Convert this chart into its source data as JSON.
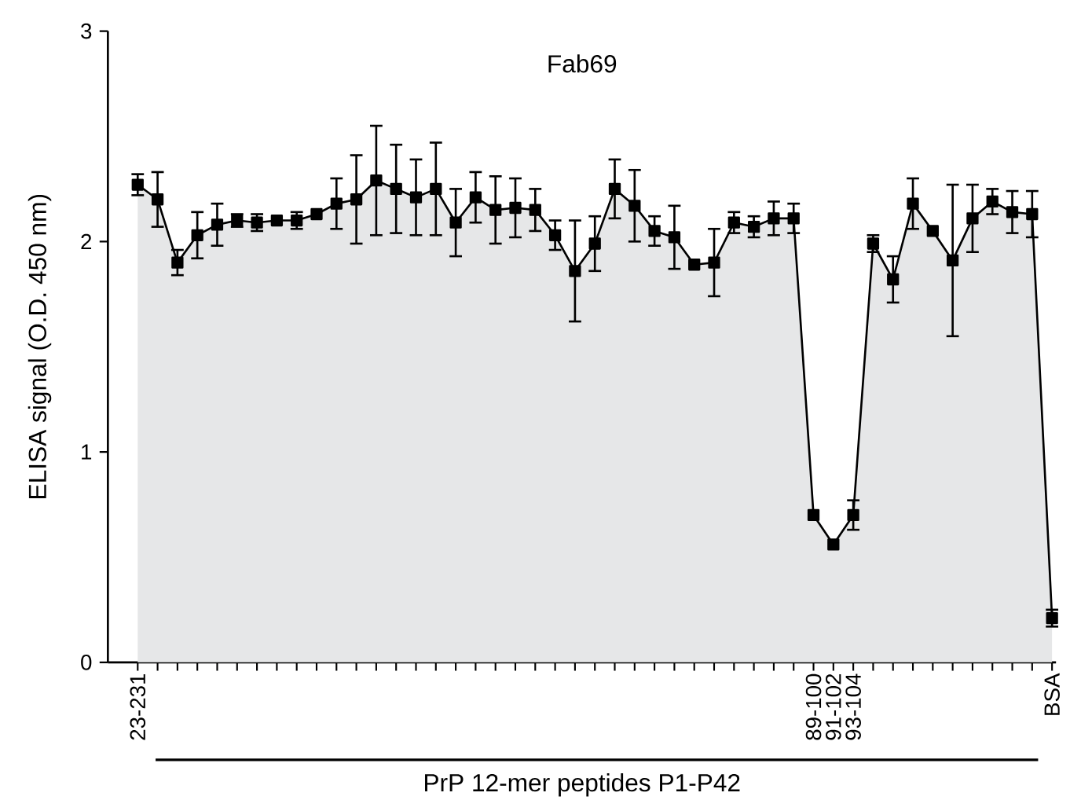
{
  "chart_data": {
    "type": "area",
    "title": "Fab69",
    "xlabel": "PrP 12-mer peptides P1-P42",
    "ylabel": "ELISA signal (O.D. 450 nm)",
    "categories": [
      "23-231",
      null,
      null,
      null,
      null,
      null,
      null,
      null,
      null,
      null,
      null,
      null,
      null,
      null,
      null,
      null,
      null,
      null,
      null,
      null,
      null,
      null,
      null,
      null,
      null,
      null,
      null,
      null,
      null,
      null,
      null,
      null,
      null,
      null,
      "89-100",
      "91-102",
      "93-104",
      null,
      null,
      null,
      null,
      null,
      null,
      null,
      null,
      null,
      "BSA"
    ],
    "series": [
      {
        "color": "#000000",
        "values": [
          2.27,
          2.2,
          1.9,
          2.03,
          2.08,
          2.1,
          2.09,
          2.1,
          2.1,
          2.13,
          2.18,
          2.2,
          2.29,
          2.25,
          2.21,
          2.25,
          2.09,
          2.21,
          2.15,
          2.16,
          2.15,
          2.03,
          1.86,
          1.99,
          2.25,
          2.17,
          2.05,
          2.02,
          1.89,
          1.9,
          2.09,
          2.07,
          2.11,
          2.11,
          0.7,
          0.56,
          0.7,
          1.99,
          1.82,
          2.18,
          2.05,
          1.91,
          2.11,
          2.19,
          2.14,
          2.13,
          0.21
        ],
        "errors": [
          0.05,
          0.13,
          0.06,
          0.11,
          0.1,
          0.03,
          0.04,
          null,
          0.04,
          null,
          0.12,
          0.21,
          0.26,
          0.21,
          0.18,
          0.22,
          0.16,
          0.12,
          0.16,
          0.14,
          0.1,
          0.07,
          0.24,
          0.13,
          0.14,
          0.17,
          0.07,
          0.15,
          null,
          0.16,
          0.05,
          0.05,
          0.08,
          0.07,
          null,
          null,
          0.07,
          0.04,
          0.11,
          0.12,
          null,
          0.36,
          0.16,
          0.06,
          0.1,
          0.11,
          0.04
        ]
      }
    ],
    "ylim": [
      0,
      3
    ],
    "yticks": [
      0,
      1,
      2,
      3
    ],
    "marker": "square",
    "line_style": "solid",
    "grid": false
  }
}
